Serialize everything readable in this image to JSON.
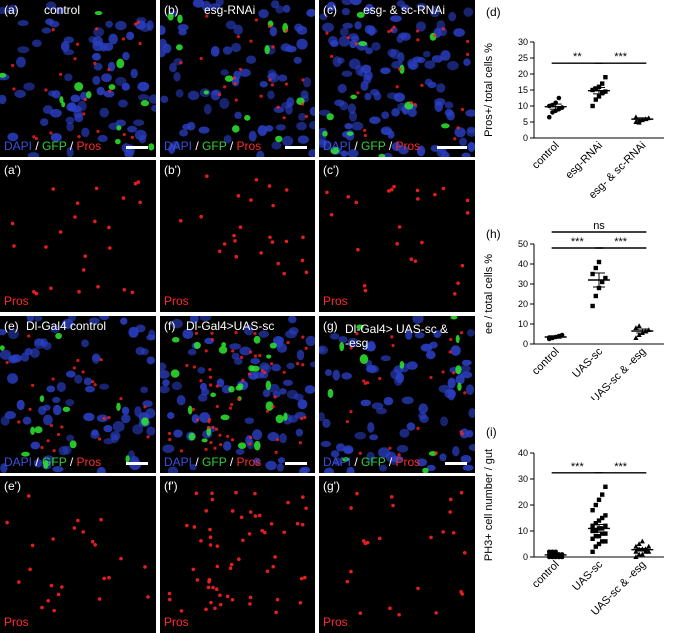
{
  "panels": {
    "a": {
      "letter": "(a)",
      "title": "control"
    },
    "b": {
      "letter": "(b)",
      "title": "esg-RNAi"
    },
    "c": {
      "letter": "(c)",
      "title": "esg- & sc-RNAi"
    },
    "a2": {
      "letter": "(a')"
    },
    "b2": {
      "letter": "(b')"
    },
    "c2": {
      "letter": "(c')"
    },
    "e": {
      "letter": "(e)",
      "title": "Dl-Gal4 control"
    },
    "f": {
      "letter": "(f)",
      "title": "Dl-Gal4>UAS-sc"
    },
    "g": {
      "letter": "(g)",
      "title": "Dl-Gal4> UAS-sc & -esg"
    },
    "e2": {
      "letter": "(e')"
    },
    "f2": {
      "letter": "(f')"
    },
    "g2": {
      "letter": "(g')"
    }
  },
  "stain": {
    "dapi": "DAPI",
    "sep": " / ",
    "gfp": "GFP",
    "pros": "Pros"
  },
  "colors": {
    "dapi": "#2b3fc4",
    "gfp": "#2ee82e",
    "pros": "#ff2020"
  },
  "chart_data": [
    {
      "panel": "(d)",
      "type": "scatter",
      "ylabel": "Pros+/ total cells %",
      "ylim": [
        0,
        30
      ],
      "yticks": [
        0,
        5,
        10,
        15,
        20,
        25,
        30
      ],
      "categories": [
        "control",
        "esg-RNAi",
        "esg- & sc-RNAi"
      ],
      "means": [
        9.8,
        14.8,
        5.9
      ],
      "sem": [
        0.8,
        1.0,
        0.4
      ],
      "points": [
        [
          6.5,
          8.0,
          8.5,
          9.0,
          9.5,
          10.0,
          10.3,
          11.0,
          12.5
        ],
        [
          10.0,
          12.0,
          13.0,
          14.0,
          14.5,
          15.0,
          15.5,
          16.0,
          17.0,
          19.0
        ],
        [
          5.0,
          5.3,
          5.6,
          5.9,
          6.2,
          6.5,
          4.8
        ]
      ],
      "markers": [
        "circle",
        "square",
        "triangle"
      ],
      "significance": [
        {
          "from": 0,
          "to": 1,
          "label": "**"
        },
        {
          "from": 1,
          "to": 2,
          "label": "***"
        }
      ]
    },
    {
      "panel": "(h)",
      "type": "scatter",
      "ylabel": "ee / total cells %",
      "ylim": [
        0,
        50
      ],
      "yticks": [
        0,
        10,
        20,
        30,
        40,
        50
      ],
      "categories": [
        "control",
        "UAS-sc",
        "UAS-sc & -esg"
      ],
      "means": [
        3.5,
        32.0,
        6.5
      ],
      "sem": [
        0.6,
        3.5,
        1.0
      ],
      "points": [
        [
          2.5,
          3.0,
          3.5,
          4.0,
          4.5,
          3.2
        ],
        [
          19.0,
          24.0,
          28.0,
          31.0,
          33.0,
          35.0,
          38.0,
          41.0
        ],
        [
          3.0,
          4.5,
          5.5,
          6.5,
          7.0,
          8.0,
          9.0
        ]
      ],
      "markers": [
        "circle",
        "square",
        "triangle"
      ],
      "significance": [
        {
          "from": 0,
          "to": 1,
          "label": "***"
        },
        {
          "from": 1,
          "to": 2,
          "label": "***"
        },
        {
          "from": 0,
          "to": 2,
          "label": "ns"
        }
      ]
    },
    {
      "panel": "(i)",
      "type": "scatter",
      "ylabel": "PH3+ cell number / gut",
      "ylim": [
        0,
        40
      ],
      "yticks": [
        0,
        10,
        20,
        30,
        40
      ],
      "categories": [
        "control",
        "UAS-sc",
        "UAS-sc & -esg"
      ],
      "means": [
        0.8,
        11.0,
        2.8
      ],
      "sem": [
        0.3,
        1.5,
        0.5
      ],
      "points": [
        [
          0,
          0,
          0,
          0,
          0,
          1,
          1,
          1,
          1,
          1,
          2,
          2,
          2
        ],
        [
          2,
          4,
          5,
          6,
          6,
          7,
          8,
          8,
          9,
          9,
          10,
          10,
          11,
          11,
          12,
          12,
          13,
          14,
          15,
          16,
          18,
          20,
          22,
          24,
          27
        ],
        [
          0,
          1,
          1,
          2,
          2,
          2,
          3,
          3,
          3,
          4,
          4,
          5,
          6
        ]
      ],
      "markers": [
        "circle",
        "square",
        "triangle"
      ],
      "significance": [
        {
          "from": 0,
          "to": 1,
          "label": "***"
        },
        {
          "from": 1,
          "to": 2,
          "label": "***"
        }
      ]
    }
  ]
}
